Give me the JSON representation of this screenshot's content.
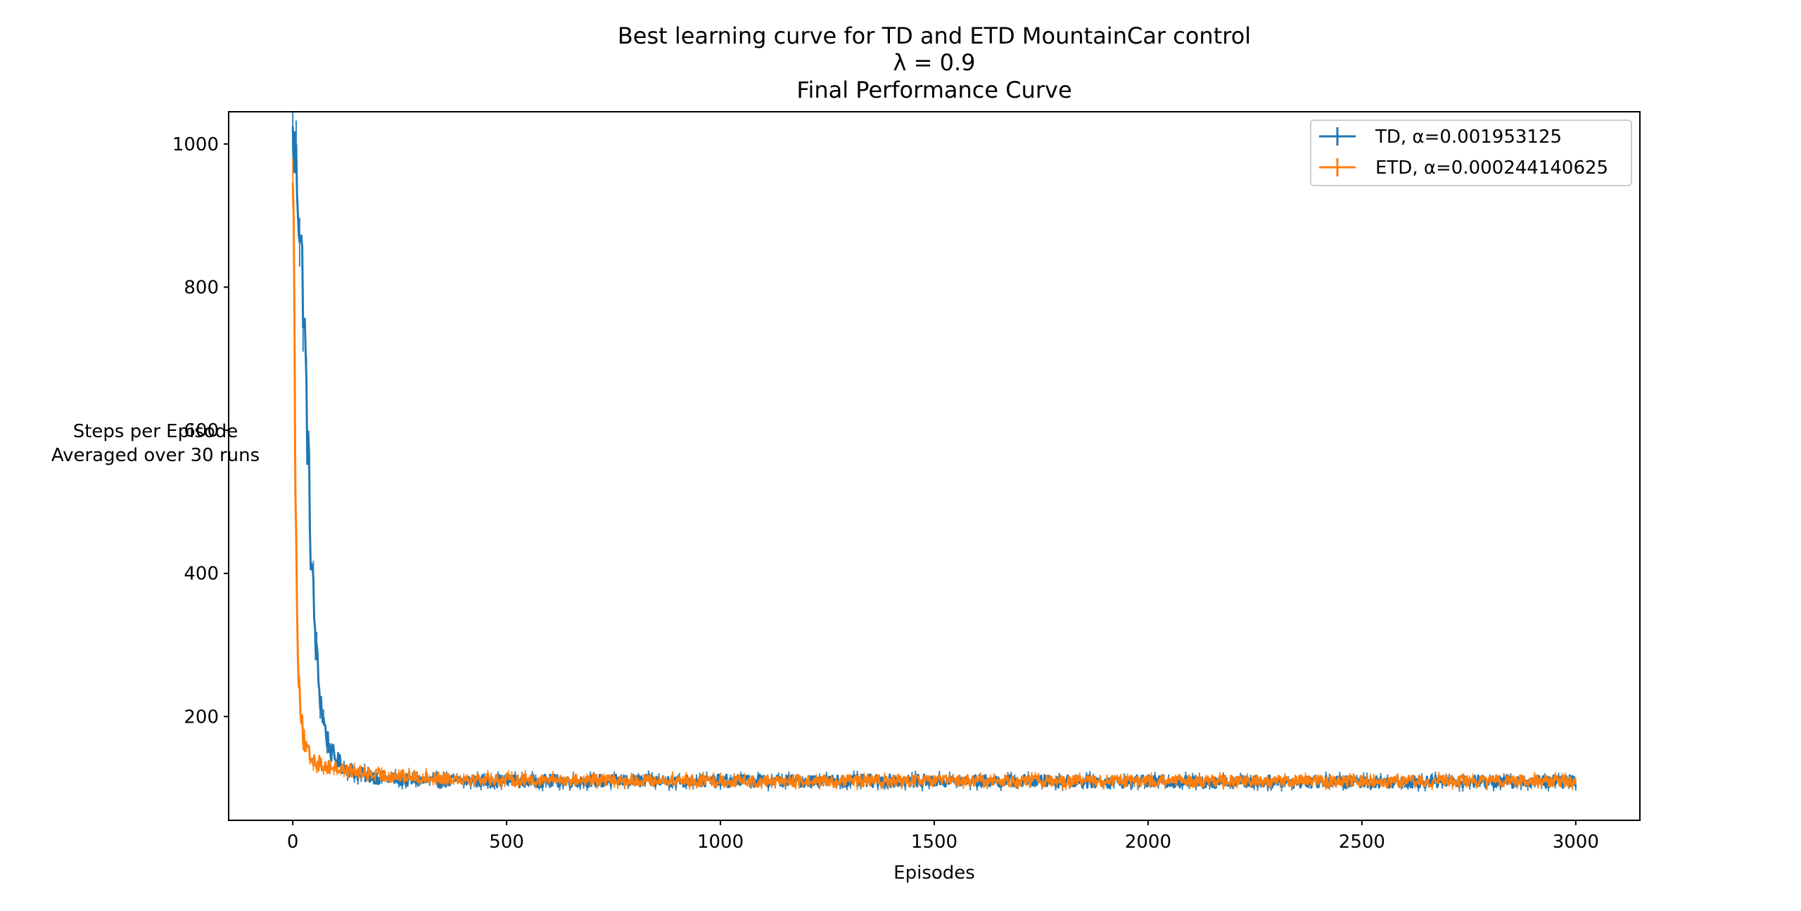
{
  "chart_data": {
    "type": "line",
    "title_lines": [
      "Best learning curve for TD and ETD MountainCar control",
      "λ = 0.9",
      "Final Performance Curve"
    ],
    "xlabel": "Episodes",
    "ylabel_lines": [
      "Steps per Episode",
      "Averaged over 30 runs"
    ],
    "xlim": [
      -150,
      3150
    ],
    "ylim": [
      55,
      1045
    ],
    "xticks": [
      0,
      500,
      1000,
      1500,
      2000,
      2500,
      3000
    ],
    "yticks": [
      200,
      400,
      600,
      800,
      1000
    ],
    "grid": false,
    "legend_position": "top-right",
    "series": [
      {
        "name": "TD, α=0.001953125",
        "color": "#1f77b4",
        "noise": 9,
        "x": [
          0,
          5,
          10,
          15,
          20,
          25,
          30,
          35,
          40,
          45,
          50,
          55,
          60,
          70,
          80,
          90,
          100,
          120,
          150,
          200,
          250,
          300,
          400,
          500,
          1000,
          1500,
          2000,
          2500,
          3000
        ],
        "y": [
          1000,
          985,
          950,
          900,
          850,
          780,
          690,
          580,
          480,
          400,
          340,
          290,
          250,
          200,
          170,
          150,
          140,
          130,
          120,
          115,
          112,
          110,
          110,
          110,
          110,
          110,
          109,
          109,
          109
        ]
      },
      {
        "name": "ETD, α=0.000244140625",
        "color": "#ff7f0e",
        "noise": 8,
        "x": [
          0,
          2,
          4,
          6,
          8,
          10,
          12,
          15,
          20,
          25,
          30,
          40,
          50,
          60,
          80,
          100,
          150,
          200,
          300,
          500,
          1000,
          1500,
          2000,
          2500,
          3000
        ],
        "y": [
          1000,
          880,
          720,
          560,
          440,
          360,
          300,
          250,
          200,
          170,
          155,
          145,
          140,
          135,
          130,
          128,
          122,
          118,
          115,
          112,
          110,
          110,
          110,
          110,
          110
        ]
      }
    ]
  }
}
